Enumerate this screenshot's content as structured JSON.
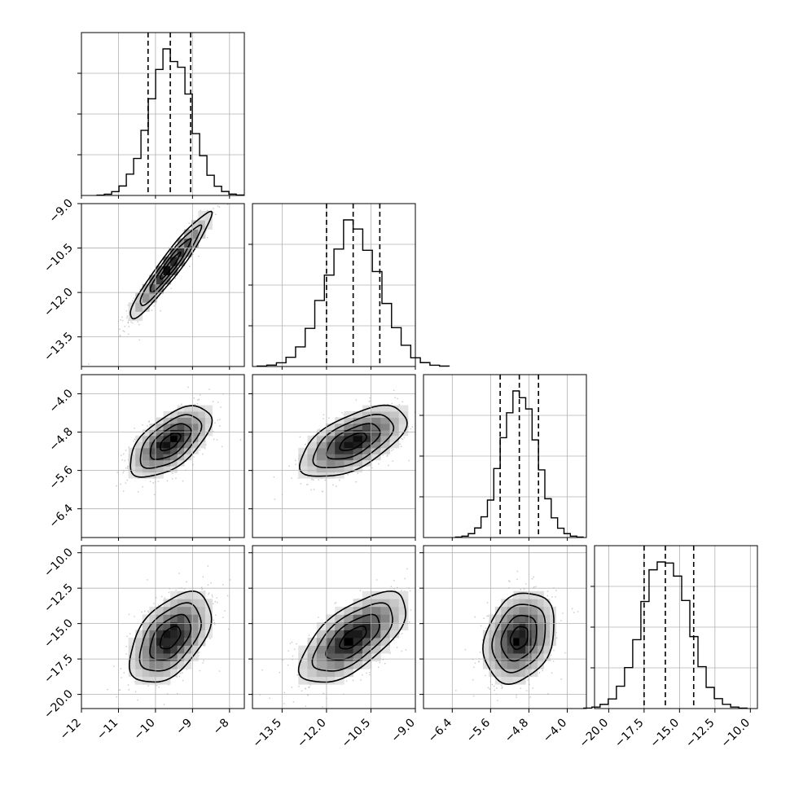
{
  "chart_data": {
    "type": "corner",
    "grid": true,
    "parameters": [
      {
        "index": 0,
        "center": -9.6,
        "sigma": 0.55,
        "range": [
          -12.0,
          -7.6
        ],
        "ticks": [
          -12,
          -11,
          -10,
          -9,
          -8
        ],
        "tick_labels": [
          "−12",
          "−11",
          "−10",
          "−9",
          "−8"
        ],
        "quantiles": [
          -10.2,
          -9.6,
          -9.05
        ]
      },
      {
        "index": 1,
        "center": -11.1,
        "sigma": 0.9,
        "range": [
          -14.5,
          -9.0
        ],
        "ticks": [
          -13.5,
          -12.0,
          -10.5,
          -9.0
        ],
        "tick_labels": [
          "−13.5",
          "−12.0",
          "−10.5",
          "−9.0"
        ],
        "quantiles": [
          -12.0,
          -11.1,
          -10.2
        ]
      },
      {
        "index": 2,
        "center": -5.0,
        "sigma": 0.37,
        "range": [
          -7.0,
          -3.6
        ],
        "ticks": [
          -6.4,
          -5.6,
          -4.8,
          -4.0
        ],
        "tick_labels": [
          "−6.4",
          "−5.6",
          "−4.8",
          "−4.0"
        ],
        "quantiles": [
          -5.4,
          -5.0,
          -4.6
        ]
      },
      {
        "index": 3,
        "center": -16.0,
        "sigma": 1.6,
        "range": [
          -21.0,
          -9.5
        ],
        "ticks": [
          -20.0,
          -17.5,
          -15.0,
          -12.5,
          -10.0
        ],
        "tick_labels": [
          "−20.0",
          "−17.5",
          "−15.0",
          "−12.5",
          "−10.0"
        ],
        "quantiles": [
          -17.5,
          -16.0,
          -14.0
        ]
      }
    ],
    "correlations": [
      {
        "pair": [
          1,
          0
        ],
        "rho": 0.95
      },
      {
        "pair": [
          2,
          0
        ],
        "rho": 0.6
      },
      {
        "pair": [
          2,
          1
        ],
        "rho": 0.6
      },
      {
        "pair": [
          3,
          0
        ],
        "rho": 0.5
      },
      {
        "pair": [
          3,
          1
        ],
        "rho": 0.65
      },
      {
        "pair": [
          3,
          2
        ],
        "rho": 0.25
      }
    ],
    "contour_levels_sigma": [
      0.5,
      1.0,
      1.5,
      2.0
    ],
    "colors": {
      "hist": "#000000",
      "scatter": "#999999",
      "contour": "#000000",
      "grid": "#b0b0b0"
    }
  }
}
